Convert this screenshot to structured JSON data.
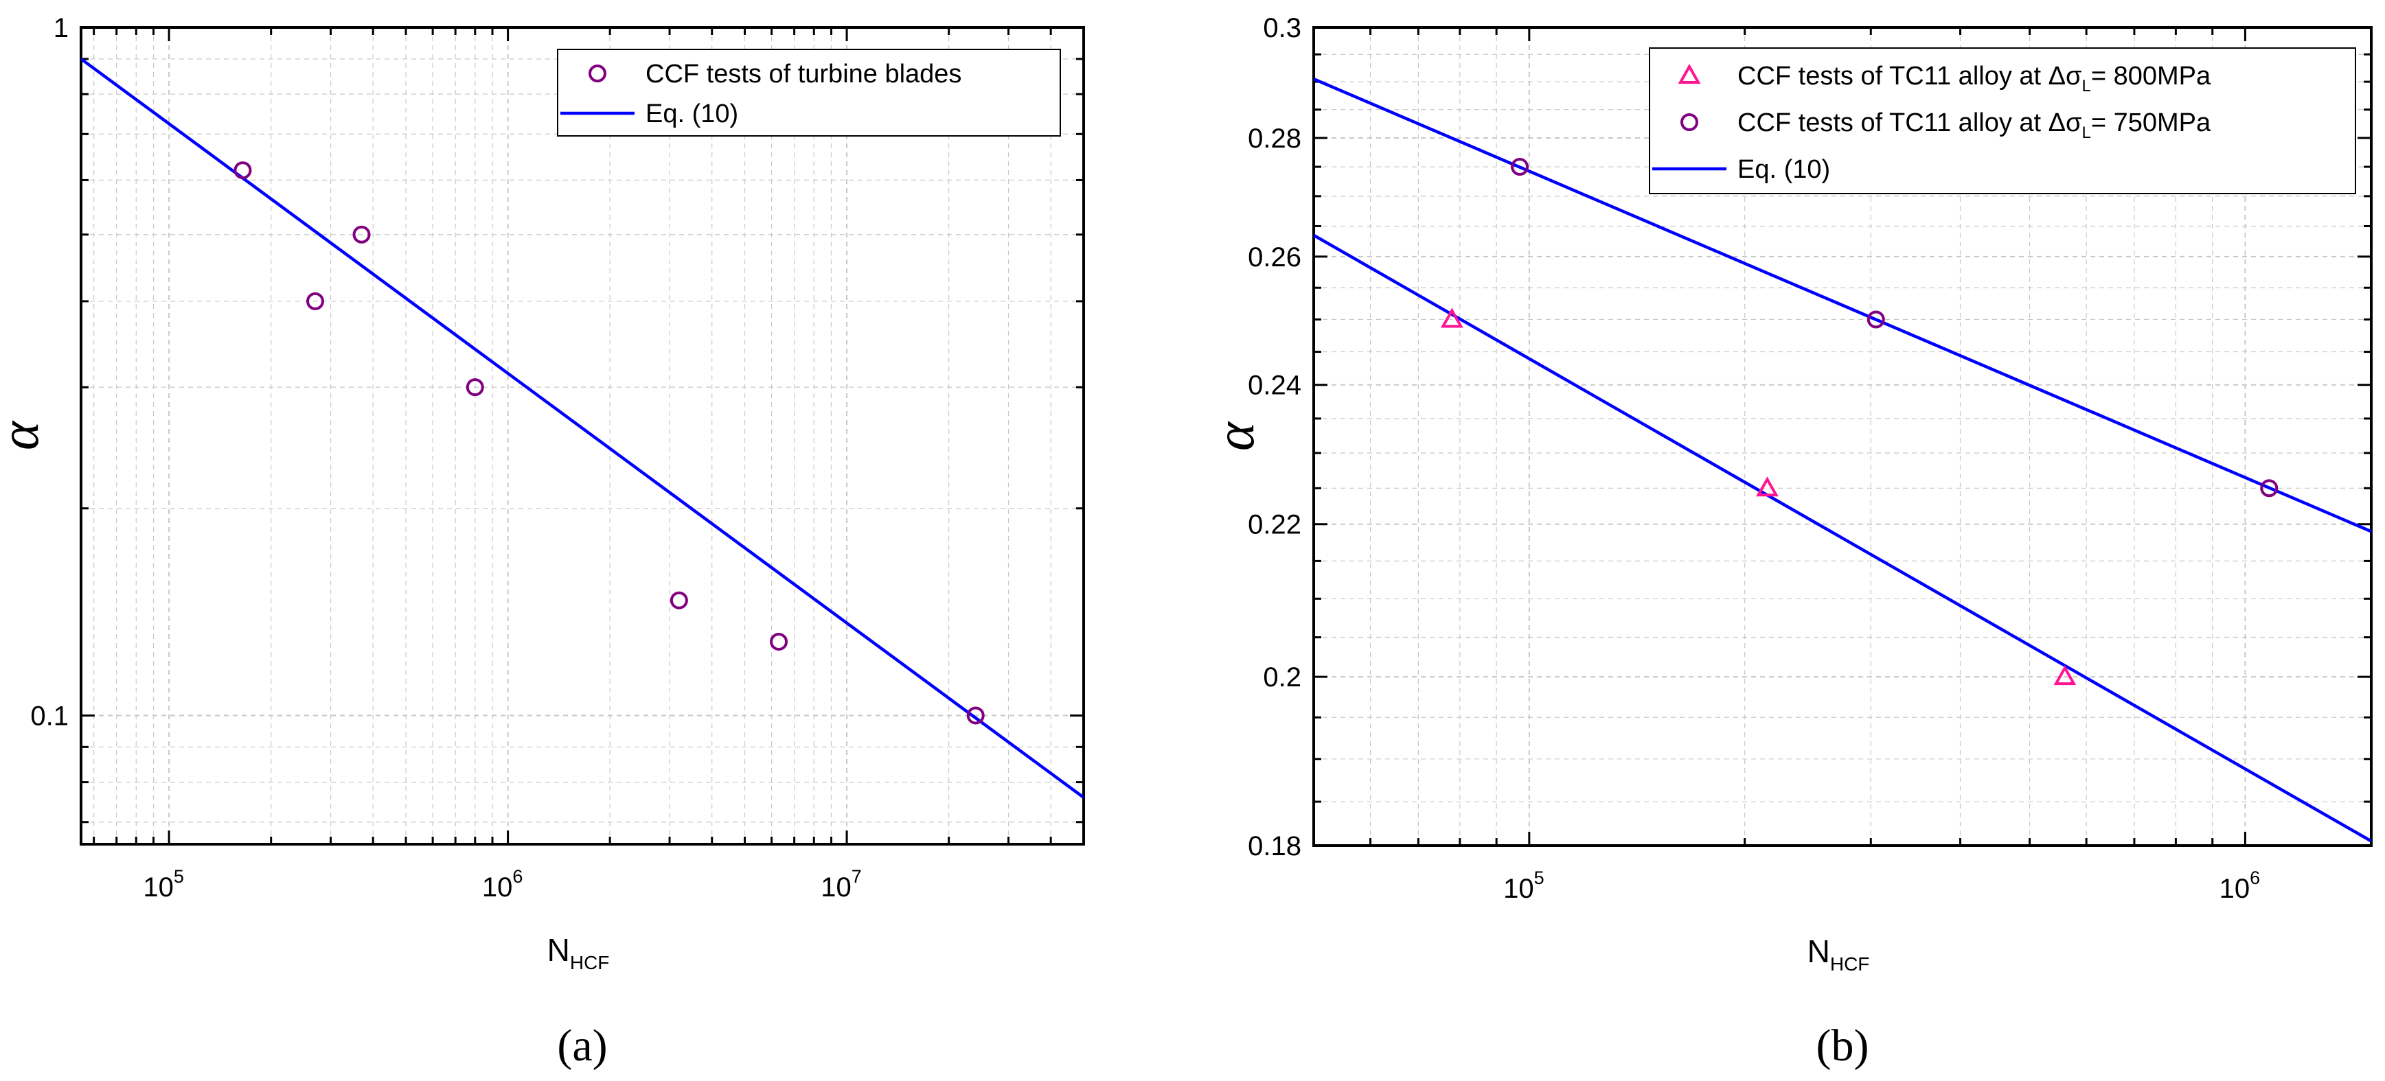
{
  "chart_data": [
    {
      "type": "scatter",
      "panel_label": "(a)",
      "xlabel": "N",
      "xlabel_sub": "HCF",
      "ylabel": "α",
      "xscale": "log",
      "yscale": "log",
      "xlim": [
        55000,
        50000000
      ],
      "ylim": [
        0.065,
        1.0
      ],
      "grid": true,
      "legend_position": "top-right",
      "x_ticks": [
        {
          "value": 100000,
          "base": "10",
          "exp": "5"
        },
        {
          "value": 1000000,
          "base": "10",
          "exp": "6"
        },
        {
          "value": 10000000,
          "base": "10",
          "exp": "7"
        }
      ],
      "y_ticks": [
        {
          "value": 1.0,
          "label": "1"
        },
        {
          "value": 0.1,
          "label": "0.1"
        }
      ],
      "series": [
        {
          "name": "CCF tests of turbine blades",
          "kind": "scatter",
          "marker": "circle",
          "color": "#800080",
          "points": [
            {
              "x": 165000,
              "y": 0.62
            },
            {
              "x": 270000,
              "y": 0.4
            },
            {
              "x": 370000,
              "y": 0.5
            },
            {
              "x": 800000,
              "y": 0.3
            },
            {
              "x": 3200000,
              "y": 0.147
            },
            {
              "x": 6300000,
              "y": 0.128
            },
            {
              "x": 24000000,
              "y": 0.1
            }
          ]
        },
        {
          "name": "Eq. (10)",
          "kind": "line",
          "color": "#0000ff",
          "points": [
            {
              "x": 55000,
              "y": 0.9
            },
            {
              "x": 50000000,
              "y": 0.076
            }
          ]
        }
      ]
    },
    {
      "type": "scatter",
      "panel_label": "(b)",
      "xlabel": "N",
      "xlabel_sub": "HCF",
      "ylabel": "α",
      "xscale": "log",
      "yscale": "log",
      "xlim": [
        50000,
        1500000
      ],
      "ylim": [
        0.18,
        0.3
      ],
      "grid": true,
      "legend_position": "top-right",
      "x_ticks": [
        {
          "value": 100000,
          "base": "10",
          "exp": "5"
        },
        {
          "value": 1000000,
          "base": "10",
          "exp": "6"
        }
      ],
      "y_ticks": [
        {
          "value": 0.3,
          "label": "0.3"
        },
        {
          "value": 0.28,
          "label": "0.28"
        },
        {
          "value": 0.26,
          "label": "0.26"
        },
        {
          "value": 0.24,
          "label": "0.24"
        },
        {
          "value": 0.22,
          "label": "0.22"
        },
        {
          "value": 0.2,
          "label": "0.2"
        },
        {
          "value": 0.18,
          "label": "0.18"
        }
      ],
      "series": [
        {
          "name": "CCF tests of TC11 alloy at Δσ",
          "name_sub": "L",
          "name_tail": "= 800MPa",
          "kind": "scatter",
          "marker": "triangle",
          "color": "#ff1493",
          "points": [
            {
              "x": 78000,
              "y": 0.25
            },
            {
              "x": 215000,
              "y": 0.225
            },
            {
              "x": 560000,
              "y": 0.2
            }
          ]
        },
        {
          "name": "CCF tests of TC11 alloy at Δσ",
          "name_sub": "L",
          "name_tail": "= 750MPa",
          "kind": "scatter",
          "marker": "circle",
          "color": "#800080",
          "points": [
            {
              "x": 97000,
              "y": 0.275
            },
            {
              "x": 305000,
              "y": 0.25
            },
            {
              "x": 1080000,
              "y": 0.225
            }
          ]
        },
        {
          "name": "Eq. (10)",
          "kind": "line",
          "color": "#0000ff",
          "points": [
            {
              "x": 50000,
              "y": 0.2905
            },
            {
              "x": 1500000,
              "y": 0.219
            }
          ]
        },
        {
          "kind": "line",
          "color": "#0000ff",
          "points": [
            {
              "x": 50000,
              "y": 0.2635
            },
            {
              "x": 1500000,
              "y": 0.1805
            }
          ]
        }
      ]
    }
  ]
}
